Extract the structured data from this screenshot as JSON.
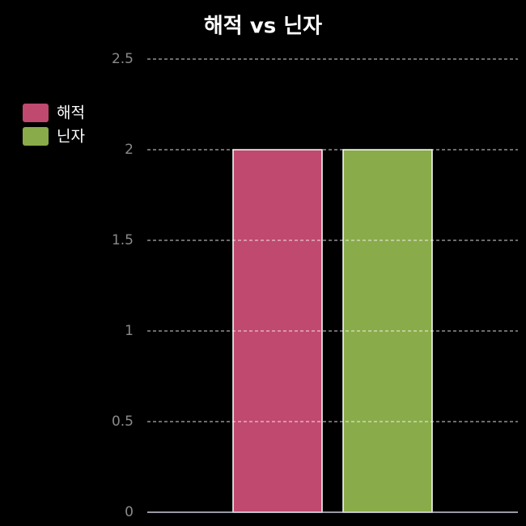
{
  "chart_data": {
    "type": "bar",
    "title": "해적 vs 닌자",
    "categories": [
      null
    ],
    "series": [
      {
        "name": "해적",
        "color": "#c0496f",
        "values": [
          2
        ]
      },
      {
        "name": "닌자",
        "color": "#8aab4a",
        "values": [
          2
        ]
      }
    ],
    "ylim": [
      0,
      2.5
    ],
    "yticks": [
      0,
      0.5,
      1,
      1.5,
      2,
      2.5
    ],
    "grid": true,
    "legend": "left"
  }
}
